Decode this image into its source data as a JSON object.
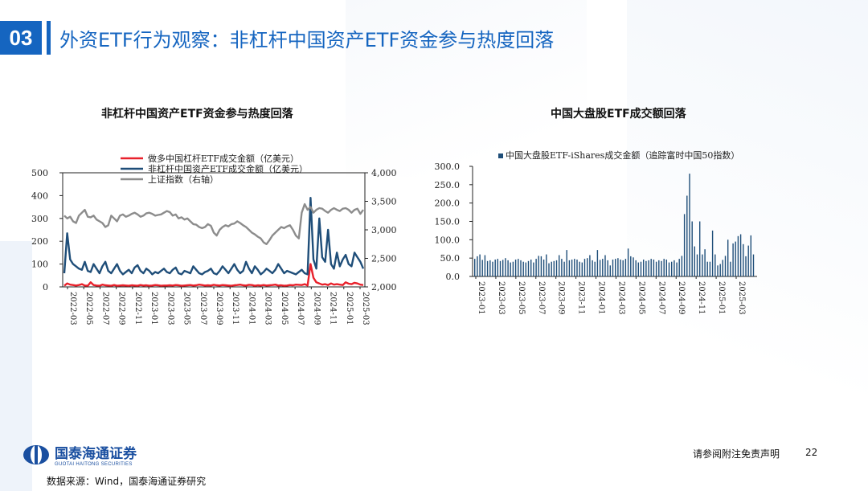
{
  "header": {
    "section_number": "03",
    "title": "外资ETF行为观察：非杠杆中国资产ETF资金参与热度回落"
  },
  "colors": {
    "accent": "#1565c0",
    "red": "#e8212b",
    "navy": "#1f4e79",
    "gray": "#8c8c8c",
    "bar": "#1f4e79"
  },
  "chart_data": [
    {
      "type": "line",
      "title": "非杠杆中国资产ETF资金参与热度回落",
      "legend_position": "top",
      "y_left_ticks": [
        "500",
        "400",
        "300",
        "200",
        "100",
        "0"
      ],
      "y_right_ticks": [
        "4,000",
        "3,500",
        "3,000",
        "2,500",
        "2,000"
      ],
      "ylim_left": [
        0,
        500
      ],
      "ylim_right": [
        2000,
        4000
      ],
      "x_ticks": [
        "2022-03",
        "2022-05",
        "2022-07",
        "2022-09",
        "2022-11",
        "2023-01",
        "2023-03",
        "2023-05",
        "2023-07",
        "2023-09",
        "2023-11",
        "2024-01",
        "2024-03",
        "2024-05",
        "2024-07",
        "2024-09",
        "2024-11",
        "2025-01",
        "2025-03"
      ],
      "series": [
        {
          "name": "做多中国杠杆ETF成交金额（亿美元）",
          "axis": "left",
          "color": "#e8212b",
          "values": [
            5,
            15,
            10,
            8,
            6,
            8,
            12,
            6,
            5,
            20,
            8,
            6,
            5,
            10,
            7,
            6,
            5,
            8,
            5,
            6,
            7,
            6,
            5,
            7,
            6,
            5,
            8,
            6,
            7,
            5,
            6,
            8,
            7,
            5,
            6,
            6,
            7,
            6,
            8,
            7,
            5,
            6,
            7,
            8,
            6,
            7,
            10,
            8,
            6,
            7,
            6,
            9,
            7,
            6,
            8,
            7,
            6,
            5,
            7,
            8,
            10,
            7,
            6,
            9,
            8,
            5,
            7,
            6,
            8,
            6,
            7,
            8,
            10,
            6,
            7,
            5,
            6,
            8,
            7,
            10,
            9,
            8,
            12,
            6,
            100,
            40,
            20,
            15,
            10,
            12,
            8,
            15,
            10,
            12,
            10,
            8,
            20,
            14,
            12,
            18,
            15,
            10,
            8
          ]
        },
        {
          "name": "非杠杆中国资产ETF成交金额（亿美元）",
          "axis": "left",
          "color": "#1f4e79",
          "values": [
            60,
            235,
            120,
            100,
            90,
            80,
            75,
            110,
            70,
            65,
            100,
            80,
            60,
            90,
            110,
            70,
            60,
            80,
            100,
            70,
            55,
            65,
            75,
            60,
            85,
            95,
            70,
            60,
            80,
            70,
            55,
            65,
            60,
            70,
            80,
            65,
            60,
            75,
            85,
            60,
            55,
            70,
            65,
            60,
            90,
            75,
            60,
            55,
            65,
            70,
            80,
            60,
            55,
            70,
            90,
            75,
            60,
            80,
            100,
            75,
            60,
            70,
            110,
            80,
            60,
            90,
            75,
            55,
            65,
            80,
            70,
            60,
            75,
            100,
            80,
            60,
            70,
            65,
            60,
            55,
            65,
            75,
            60,
            55,
            390,
            120,
            80,
            300,
            130,
            110,
            250,
            100,
            80,
            150,
            90,
            120,
            140,
            100,
            90,
            150,
            130,
            110,
            80
          ]
        },
        {
          "name": "上证指数（右轴）",
          "axis": "right",
          "color": "#8c8c8c",
          "values": [
            3250,
            3200,
            3230,
            3150,
            3120,
            3250,
            3300,
            3350,
            3230,
            3220,
            3250,
            3180,
            3150,
            3120,
            3050,
            3080,
            3250,
            3200,
            3150,
            3250,
            3270,
            3230,
            3250,
            3280,
            3300,
            3270,
            3230,
            3250,
            3290,
            3300,
            3280,
            3250,
            3260,
            3270,
            3300,
            3330,
            3310,
            3250,
            3270,
            3200,
            3220,
            3180,
            3200,
            3150,
            3100,
            3090,
            3050,
            3030,
            3050,
            3100,
            3070,
            2950,
            2900,
            3000,
            3050,
            3080,
            3060,
            3100,
            3110,
            3150,
            3120,
            3080,
            3050,
            3000,
            2950,
            2920,
            2880,
            2850,
            2780,
            2750,
            2820,
            2900,
            2950,
            3000,
            3050,
            3030,
            3060,
            3080,
            3000,
            2900,
            2850,
            3300,
            3450,
            3350,
            3400,
            3300,
            3350,
            3380,
            3370,
            3330,
            3300,
            3350,
            3380,
            3350,
            3330,
            3370,
            3380,
            3350,
            3300,
            3350,
            3370,
            3280,
            3350
          ]
        }
      ]
    },
    {
      "type": "bar",
      "title": "中国大盘股ETF成交额回落",
      "legend_position": "top",
      "series_name": "中国大盘股ETF-iShares成交金额（追踪富时中国50指数）",
      "y_ticks": [
        "300.0",
        "250.0",
        "200.0",
        "150.0",
        "100.0",
        "50.0",
        "0.0"
      ],
      "ylim": [
        0,
        300
      ],
      "x_ticks": [
        "2023-01",
        "2023-03",
        "2023-05",
        "2023-07",
        "2023-09",
        "2023-11",
        "2024-01",
        "2024-03",
        "2024-05",
        "2024-07",
        "2024-09",
        "2024-11",
        "2025-01",
        "2025-03"
      ],
      "values": [
        48,
        55,
        60,
        45,
        58,
        42,
        44,
        40,
        46,
        48,
        42,
        45,
        50,
        44,
        38,
        40,
        46,
        48,
        44,
        40,
        38,
        42,
        46,
        38,
        48,
        56,
        55,
        46,
        60,
        36,
        40,
        42,
        44,
        58,
        48,
        40,
        72,
        44,
        46,
        48,
        46,
        40,
        38,
        48,
        50,
        58,
        44,
        40,
        72,
        45,
        48,
        58,
        44,
        30,
        46,
        48,
        50,
        46,
        44,
        48,
        76,
        55,
        52,
        44,
        38,
        40,
        46,
        42,
        44,
        48,
        46,
        40,
        44,
        42,
        48,
        46,
        38,
        40,
        44,
        38,
        48,
        56,
        170,
        220,
        280,
        150,
        82,
        60,
        150,
        60,
        74,
        40,
        40,
        125,
        60,
        30,
        34,
        45,
        56,
        100,
        40,
        90,
        95,
        110,
        115,
        88,
        55,
        84,
        112,
        60
      ]
    }
  ],
  "footer": {
    "logo_name": "国泰海通证券",
    "logo_en": "GUOTAI HAITONG SECURITIES",
    "disclaimer": "请参阅附注免责声明",
    "page_number": "22",
    "source": "数据来源：Wind，国泰海通证券研究"
  }
}
